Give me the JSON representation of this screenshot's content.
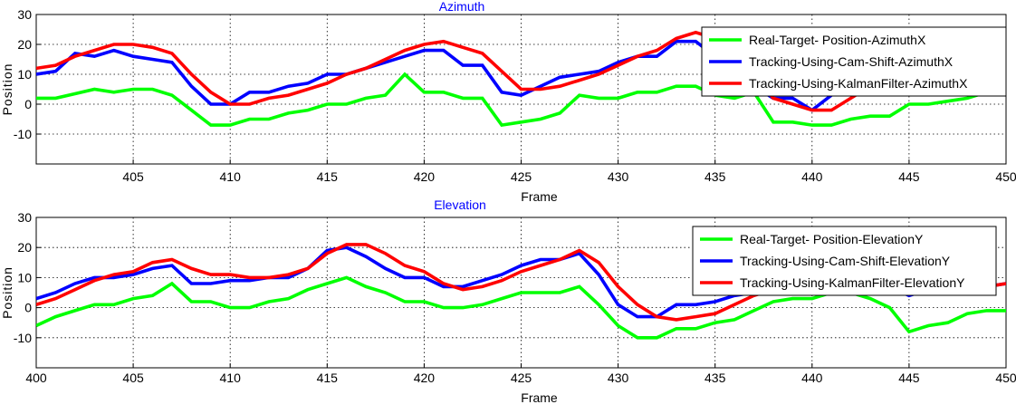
{
  "chart_data": [
    {
      "type": "line",
      "title": "Azimuth",
      "title_color": "#0000ff",
      "xlabel": "Frame",
      "ylabel": "Position",
      "xlim": [
        400,
        450
      ],
      "ylim": [
        -20,
        30
      ],
      "xticks": [
        405,
        410,
        415,
        420,
        425,
        430,
        435,
        440,
        445,
        450
      ],
      "yticks": [
        -10,
        0,
        10,
        20,
        30
      ],
      "grid": true,
      "legend_position": "top-right",
      "x": [
        400,
        401,
        402,
        403,
        404,
        405,
        406,
        407,
        408,
        409,
        410,
        411,
        412,
        413,
        414,
        415,
        416,
        417,
        418,
        419,
        420,
        421,
        422,
        423,
        424,
        425,
        426,
        427,
        428,
        429,
        430,
        431,
        432,
        433,
        434,
        435,
        436,
        437,
        438,
        439,
        440,
        441,
        442,
        443,
        444,
        445,
        446,
        447,
        448,
        449,
        450
      ],
      "series": [
        {
          "name": "Real-Target- Position-AzimuthX",
          "color": "#00ff00",
          "values": [
            2,
            2,
            3.5,
            5,
            4,
            5,
            5,
            3,
            -2,
            -7,
            -7,
            -5,
            -5,
            -3,
            -2,
            0,
            0,
            2,
            3,
            10,
            4,
            4,
            2,
            2,
            -7,
            -6,
            -5,
            -3,
            3,
            2,
            2,
            4,
            4,
            6,
            6,
            3,
            2,
            4,
            -6,
            -6,
            -7,
            -7,
            -5,
            -4,
            -4,
            0,
            0,
            1,
            2,
            4,
            5
          ]
        },
        {
          "name": "Tracking-Using-Cam-Shift-AzimuthX",
          "color": "#0000ff",
          "values": [
            10,
            11,
            17,
            16,
            18,
            16,
            15,
            14,
            6,
            0,
            0,
            4,
            4,
            6,
            7,
            10,
            10,
            12,
            14,
            16,
            18,
            18,
            13,
            13,
            4,
            3,
            6,
            9,
            10,
            11,
            14,
            16,
            16,
            21,
            21,
            16,
            7,
            6,
            2,
            2,
            -2,
            3,
            7,
            10,
            12,
            14,
            16,
            18,
            19,
            20,
            21
          ]
        },
        {
          "name": "Tracking-Using-KalmanFilter-AzimuthX",
          "color": "#ff0000",
          "values": [
            12,
            13,
            16,
            18,
            20,
            20,
            19,
            17,
            10,
            4,
            0,
            0,
            2,
            3,
            5,
            7,
            10,
            12,
            15,
            18,
            20,
            21,
            19,
            17,
            11,
            5,
            5,
            6,
            8,
            10,
            13,
            16,
            18,
            22,
            24,
            22,
            16,
            10,
            2,
            0,
            -2,
            -2,
            2,
            6,
            9,
            12,
            15,
            17,
            19,
            21,
            24
          ]
        }
      ]
    },
    {
      "type": "line",
      "title": "Elevation",
      "title_color": "#0000ff",
      "xlabel": "Frame",
      "ylabel": "Position",
      "xlim": [
        400,
        450
      ],
      "ylim": [
        -20,
        30
      ],
      "xticks": [
        400,
        405,
        410,
        415,
        420,
        425,
        430,
        435,
        440,
        445,
        450
      ],
      "yticks": [
        -10,
        0,
        10,
        20,
        30
      ],
      "grid": true,
      "legend_position": "top-right",
      "x": [
        400,
        401,
        402,
        403,
        404,
        405,
        406,
        407,
        408,
        409,
        410,
        411,
        412,
        413,
        414,
        415,
        416,
        417,
        418,
        419,
        420,
        421,
        422,
        423,
        424,
        425,
        426,
        427,
        428,
        429,
        430,
        431,
        432,
        433,
        434,
        435,
        436,
        437,
        438,
        439,
        440,
        441,
        442,
        443,
        444,
        445,
        446,
        447,
        448,
        449,
        450
      ],
      "series": [
        {
          "name": "Real-Target- Position-ElevationY",
          "color": "#00ff00",
          "values": [
            -6,
            -3,
            -1,
            1,
            1,
            3,
            4,
            8,
            2,
            2,
            0,
            0,
            2,
            3,
            6,
            8,
            10,
            7,
            5,
            2,
            2,
            0,
            0,
            1,
            3,
            5,
            5,
            5,
            7,
            1,
            -6,
            -10,
            -10,
            -7,
            -7,
            -5,
            -4,
            -1,
            2,
            3,
            3,
            5,
            5,
            3,
            0,
            -8,
            -6,
            -5,
            -2,
            -1,
            -1
          ]
        },
        {
          "name": "Tracking-Using-Cam-Shift-ElevationY",
          "color": "#0000ff",
          "values": [
            3,
            5,
            8,
            10,
            10,
            11,
            13,
            14,
            8,
            8,
            9,
            9,
            10,
            10,
            13,
            19,
            20,
            17,
            13,
            10,
            10,
            7,
            7,
            9,
            11,
            14,
            16,
            16,
            18,
            11,
            1,
            -3,
            -3,
            1,
            1,
            2,
            4,
            5,
            6,
            6,
            7,
            5,
            6,
            5,
            7,
            4,
            6,
            6,
            6,
            7,
            8
          ]
        },
        {
          "name": "Tracking-Using-KalmanFilter-ElevationY",
          "color": "#ff0000",
          "values": [
            1,
            3,
            6,
            9,
            11,
            12,
            15,
            16,
            13,
            11,
            11,
            10,
            10,
            11,
            13,
            18,
            21,
            21,
            18,
            14,
            12,
            8,
            6,
            7,
            9,
            12,
            14,
            16,
            19,
            15,
            7,
            1,
            -3,
            -4,
            -3,
            -2,
            1,
            4,
            6,
            7,
            7,
            8,
            8,
            7,
            7,
            6,
            6,
            6,
            7,
            7,
            8
          ]
        }
      ]
    }
  ]
}
